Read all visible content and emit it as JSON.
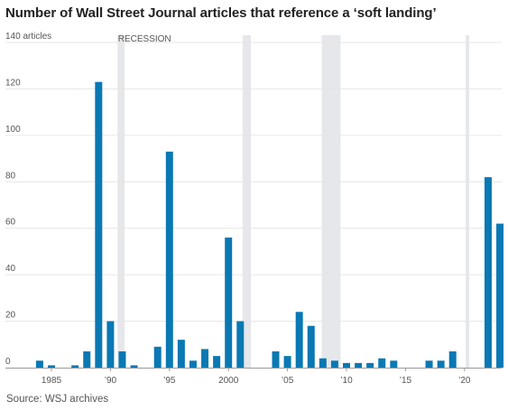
{
  "title": "Number of Wall Street Journal articles that reference a ‘soft landing’",
  "source": "Source: WSJ archives",
  "recession_label": "RECESSION",
  "colors": {
    "bar": "#0a78b3",
    "recession": "#e6e7ea",
    "grid": "#e6e6e6",
    "text": "#555555"
  },
  "chart_data": {
    "type": "bar",
    "title": "Number of Wall Street Journal articles that reference a ‘soft landing’",
    "x": [
      1984,
      1985,
      1986,
      1987,
      1988,
      1989,
      1990,
      1991,
      1992,
      1993,
      1994,
      1995,
      1996,
      1997,
      1998,
      1999,
      2000,
      2001,
      2002,
      2003,
      2004,
      2005,
      2006,
      2007,
      2008,
      2009,
      2010,
      2011,
      2012,
      2013,
      2014,
      2015,
      2016,
      2017,
      2018,
      2019,
      2020,
      2021,
      2022,
      2023
    ],
    "values": [
      3,
      1,
      0,
      1,
      7,
      123,
      20,
      7,
      1,
      0,
      9,
      93,
      12,
      3,
      8,
      5,
      56,
      20,
      0,
      0,
      7,
      5,
      24,
      18,
      4,
      3,
      2,
      2,
      2,
      4,
      3,
      0,
      0,
      3,
      3,
      7,
      0,
      0,
      82,
      62
    ],
    "ylim": [
      0,
      140
    ],
    "yticks": [
      0,
      20,
      40,
      60,
      80,
      100,
      120,
      140
    ],
    "ytick_labels": [
      "0",
      "20",
      "40",
      "60",
      "80",
      "100",
      "120",
      "140 articles"
    ],
    "xticks": [
      1985,
      1990,
      1995,
      2000,
      2005,
      2010,
      2015,
      2020
    ],
    "xtick_labels": [
      "1985",
      "’90",
      "’95",
      "2000",
      "’05",
      "’10",
      "’15",
      "’20"
    ],
    "recessions": [
      [
        1990.6,
        1991.2
      ],
      [
        2001.2,
        2001.9
      ],
      [
        2007.9,
        2009.5
      ],
      [
        2020.1,
        2020.4
      ]
    ],
    "grid": true,
    "legend": "none"
  }
}
